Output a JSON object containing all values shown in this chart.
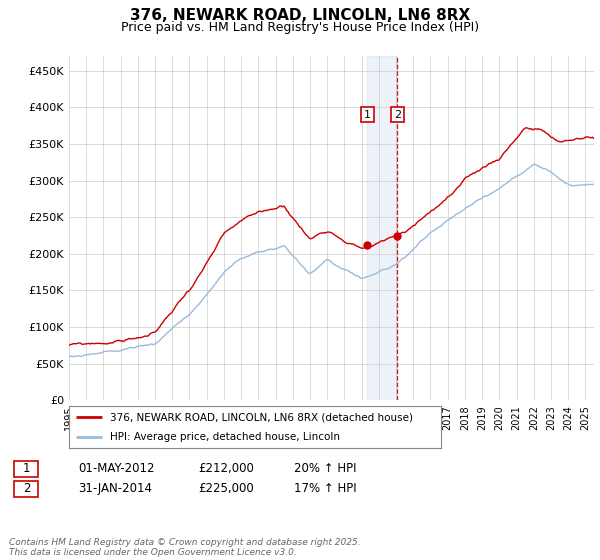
{
  "title": "376, NEWARK ROAD, LINCOLN, LN6 8RX",
  "subtitle": "Price paid vs. HM Land Registry's House Price Index (HPI)",
  "ylim": [
    0,
    470000
  ],
  "yticks": [
    0,
    50000,
    100000,
    150000,
    200000,
    250000,
    300000,
    350000,
    400000,
    450000
  ],
  "ytick_labels": [
    "£0",
    "£50K",
    "£100K",
    "£150K",
    "£200K",
    "£250K",
    "£300K",
    "£350K",
    "£400K",
    "£450K"
  ],
  "sale1_date_num": 2012.33,
  "sale1_price": 212000,
  "sale2_date_num": 2014.08,
  "sale2_price": 225000,
  "sale_color": "#cc0000",
  "hpi_color": "#99bbdd",
  "bg_color": "#ffffff",
  "grid_color": "#cccccc",
  "legend_label_red": "376, NEWARK ROAD, LINCOLN, LN6 8RX (detached house)",
  "legend_label_blue": "HPI: Average price, detached house, Lincoln",
  "footer_text": "Contains HM Land Registry data © Crown copyright and database right 2025.\nThis data is licensed under the Open Government Licence v3.0.",
  "title_fontsize": 11,
  "subtitle_fontsize": 9
}
